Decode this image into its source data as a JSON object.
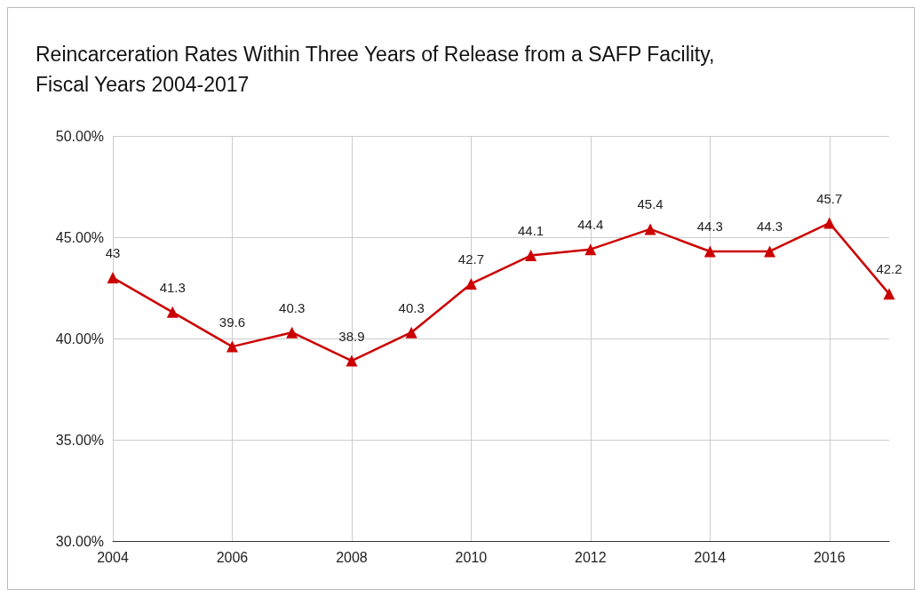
{
  "chart_data": {
    "type": "line",
    "title": "Reincarceration Rates Within Three Years of Release from a SAFP Facility, Fiscal Years 2004-2017",
    "x": [
      2004,
      2005,
      2006,
      2007,
      2008,
      2009,
      2010,
      2011,
      2012,
      2013,
      2014,
      2015,
      2016,
      2017
    ],
    "series": [
      {
        "color": "#cc0000",
        "values": [
          43,
          41.3,
          39.6,
          40.3,
          38.9,
          40.3,
          42.7,
          44.1,
          44.4,
          45.4,
          44.3,
          44.3,
          45.7,
          42.2
        ]
      }
    ],
    "xlim": [
      2004,
      2017
    ],
    "xticks": [
      2004,
      2006,
      2008,
      2010,
      2012,
      2014,
      2016
    ],
    "ylim": [
      30,
      50
    ],
    "yticks": [
      {
        "value": 30,
        "label": "30.00%"
      },
      {
        "value": 35,
        "label": "35.00%"
      },
      {
        "value": 40,
        "label": "40.00%"
      },
      {
        "value": 45,
        "label": "45.00%"
      },
      {
        "value": 50,
        "label": "50.00%"
      }
    ],
    "grid": true,
    "marker": "triangle",
    "line_style": "solid",
    "data_labels": true
  }
}
